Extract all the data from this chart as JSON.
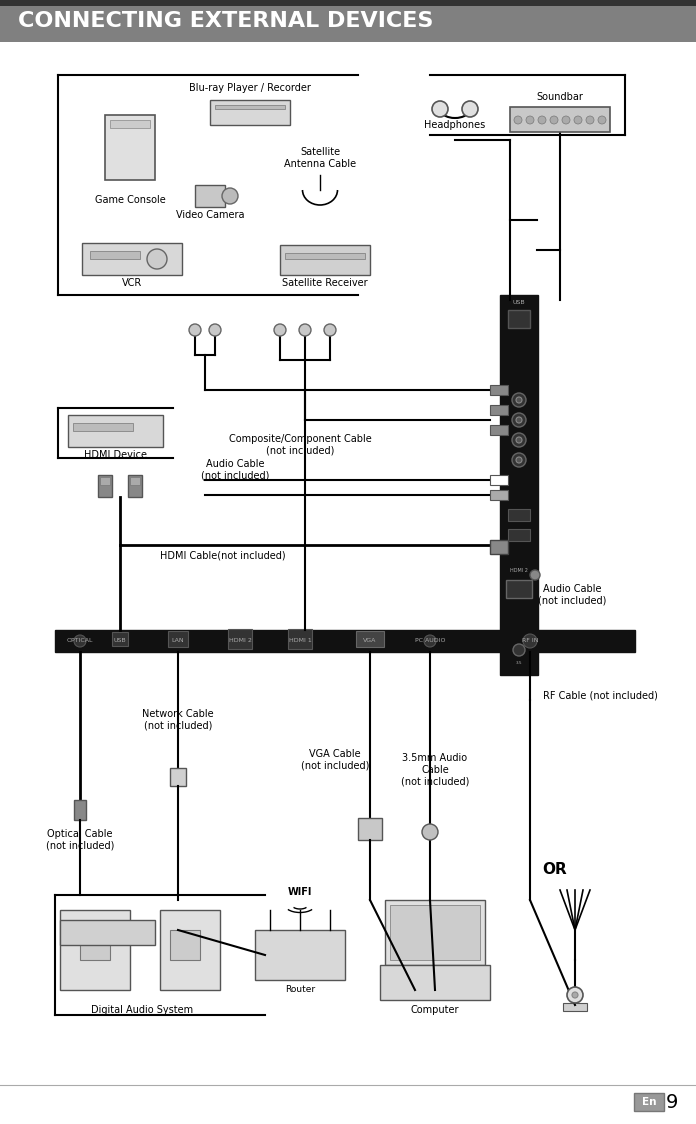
{
  "title": "CONNECTING EXTERNAL DEVICES",
  "title_bg": "#808080",
  "title_fg": "#ffffff",
  "page_bg": "#ffffff",
  "footer_text": "En",
  "footer_number": "9",
  "labels": {
    "bluray": "Blu-ray Player / Recorder",
    "game_console": "Game Console",
    "video_camera": "Video Camera",
    "satellite_antenna": "Satellite\nAntenna Cable",
    "satellite_receiver": "Satellite Receiver",
    "vcr": "VCR",
    "headphones": "Headphones",
    "soundbar": "Soundbar",
    "hdmi_device": "HDMI Device",
    "composite": "Composite/Component Cable\n(not included)",
    "audio_cable_side": "Audio Cable\n(not included)",
    "audio_cable_bottom": "Audio Cable\n(not included)",
    "hdmi_cable": "HDMI Cable(not included)",
    "optical_cable": "Optical Cable\n(not included)",
    "network_cable": "Network Cable\n(not included)",
    "vga_cable": "VGA Cable\n(not included)",
    "audio_35mm": "3.5mm Audio\nCable\n(not included)",
    "rf_cable": "RF Cable (not included)",
    "digital_audio": "Digital Audio System",
    "router": "Router",
    "wifi": "WIFI",
    "computer": "Computer",
    "or_text": "OR",
    "port_optical": "OPTICAL",
    "port_usb": "USB",
    "port_lan": "LAN",
    "port_hdmi2": "HDMI 2",
    "port_hdmi1": "HDMI 1",
    "port_vga": "VGA",
    "port_pc_audio": "PC AUDIO",
    "port_rf": "RF IN"
  },
  "colors": {
    "dark": "#1a1a1a",
    "gray": "#808080",
    "light_gray": "#b0b0b0",
    "white": "#ffffff",
    "black": "#000000",
    "panel": "#1a1a1a",
    "connector_gray": "#888888",
    "connector_dark": "#444444"
  }
}
